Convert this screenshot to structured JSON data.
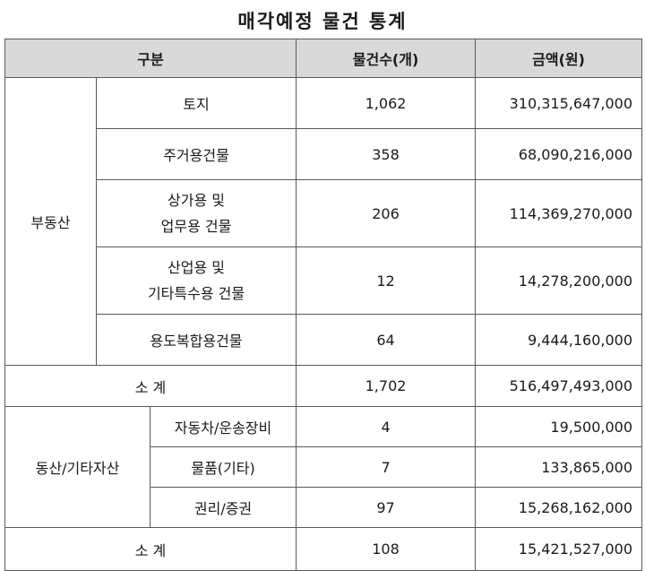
{
  "title": "매각예정 물건 통계",
  "headers": {
    "category": "구분",
    "count": "물건수(개)",
    "amount": "금액(원)"
  },
  "real_estate": {
    "group_label": "부동산",
    "rows": [
      {
        "label": "토지",
        "count": "1,062",
        "amount": "310,315,647,000"
      },
      {
        "label": "주거용건물",
        "count": "358",
        "amount": "68,090,216,000"
      },
      {
        "label_line1": "상가용 및",
        "label_line2": "업무용 건물",
        "count": "206",
        "amount": "114,369,270,000"
      },
      {
        "label_line1": "산업용 및",
        "label_line2": "기타특수용 건물",
        "count": "12",
        "amount": "14,278,200,000"
      },
      {
        "label": "용도복합용건물",
        "count": "64",
        "amount": "9,444,160,000"
      }
    ],
    "subtotal": {
      "label": "소 계",
      "count": "1,702",
      "amount": "516,497,493,000"
    }
  },
  "movable": {
    "group_label": "동산/기타자산",
    "rows": [
      {
        "label": "자동차/운송장비",
        "count": "4",
        "amount": "19,500,000"
      },
      {
        "label": "물품(기타)",
        "count": "7",
        "amount": "133,865,000"
      },
      {
        "label": "권리/증권",
        "count": "97",
        "amount": "15,268,162,000"
      }
    ],
    "subtotal": {
      "label": "소 계",
      "count": "108",
      "amount": "15,421,527,000"
    }
  }
}
